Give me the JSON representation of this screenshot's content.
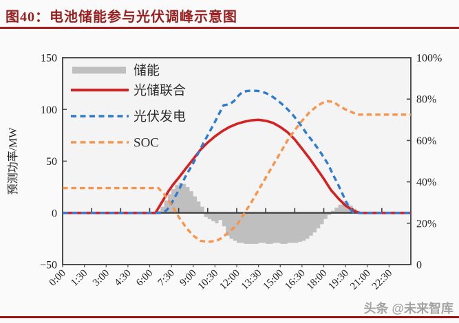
{
  "header": {
    "title": "图40：电池储能参与光伏调峰示意图"
  },
  "watermark": {
    "text": "头条 @未来智库"
  },
  "theme": {
    "title_color": "#9a2020",
    "rule_color": "#aa1b1b",
    "axis_color": "#4d4d4d",
    "background": "#fafafa",
    "plot_background": "#f4f4f5"
  },
  "chart_data": {
    "type": "line",
    "title": "",
    "x_axis": {
      "unit": "time-of-day",
      "range_hours": [
        0,
        24
      ],
      "ticklabels": [
        "0:00",
        "1:30",
        "3:00",
        "4:30",
        "6:00",
        "7:30",
        "9:00",
        "10:30",
        "12:00",
        "13:30",
        "15:00",
        "16:30",
        "18:00",
        "19:30",
        "21:00",
        "22:30"
      ],
      "tick_hours": [
        0,
        1.5,
        3,
        4.5,
        6,
        7.5,
        9,
        10.5,
        12,
        13.5,
        15,
        16.5,
        18,
        19.5,
        21,
        22.5
      ],
      "zero_axis_tick_hours": [
        2,
        4,
        6,
        8,
        10,
        12,
        14,
        16,
        18,
        20,
        22
      ]
    },
    "y_left": {
      "label": "预测功率/MW",
      "range": [
        -50,
        150
      ],
      "tick_values": [
        150,
        100,
        50,
        0,
        -50
      ],
      "tick_labels": [
        "150",
        "100",
        "50",
        "0",
        "−50"
      ]
    },
    "y_right": {
      "label": "",
      "range": [
        0,
        100
      ],
      "tick_values": [
        100,
        80,
        60,
        40,
        20,
        0
      ],
      "tick_labels": [
        "100%",
        "80%",
        "60%",
        "40%",
        "20%",
        "0"
      ]
    },
    "legend": {
      "position": "top-left-inside",
      "items": [
        {
          "label": "储能",
          "swatch": "bar"
        },
        {
          "label": "光储联合",
          "swatch": "line-solid"
        },
        {
          "label": "光伏发电",
          "swatch": "line-dashed"
        },
        {
          "label": "SOC",
          "swatch": "line-dashed"
        }
      ]
    },
    "series": [
      {
        "name": "储能",
        "type": "step-area",
        "axis": "left",
        "color": "#bfbfbf",
        "points": [
          [
            6.5,
            2
          ],
          [
            6.75,
            6
          ],
          [
            7,
            12
          ],
          [
            7.25,
            18
          ],
          [
            7.5,
            23
          ],
          [
            7.75,
            27
          ],
          [
            8,
            29
          ],
          [
            8.25,
            28
          ],
          [
            8.5,
            25
          ],
          [
            8.75,
            21
          ],
          [
            9,
            16
          ],
          [
            9.25,
            11
          ],
          [
            9.5,
            6
          ],
          [
            9.75,
            -4
          ],
          [
            10,
            -6
          ],
          [
            10.25,
            -8
          ],
          [
            10.5,
            -10
          ],
          [
            10.75,
            -7
          ],
          [
            11,
            -13
          ],
          [
            11.25,
            -22
          ],
          [
            11.5,
            -25
          ],
          [
            11.75,
            -27
          ],
          [
            12,
            -29
          ],
          [
            12.5,
            -30
          ],
          [
            13,
            -30
          ],
          [
            13.5,
            -29
          ],
          [
            14,
            -30
          ],
          [
            14.5,
            -29
          ],
          [
            15,
            -30
          ],
          [
            15.5,
            -29
          ],
          [
            16,
            -29
          ],
          [
            16.25,
            -28
          ],
          [
            16.5,
            -27
          ],
          [
            16.75,
            -25
          ],
          [
            17,
            -22
          ],
          [
            17.25,
            -19
          ],
          [
            17.5,
            -15
          ],
          [
            17.75,
            -11
          ],
          [
            18,
            -6
          ],
          [
            18.25,
            -2
          ],
          [
            18.5,
            2
          ],
          [
            18.75,
            5
          ],
          [
            19,
            8
          ],
          [
            19.25,
            11
          ],
          [
            19.5,
            10
          ],
          [
            19.75,
            7
          ],
          [
            20,
            4
          ],
          [
            20.25,
            2
          ],
          [
            20.5,
            0
          ]
        ]
      },
      {
        "name": "光储联合",
        "type": "line",
        "style": "solid",
        "axis": "left",
        "color": "#d42222",
        "points": [
          [
            0,
            0
          ],
          [
            6.4,
            0
          ],
          [
            6.7,
            7
          ],
          [
            7,
            14
          ],
          [
            7.3,
            21
          ],
          [
            7.6,
            27
          ],
          [
            8,
            34
          ],
          [
            8.5,
            43
          ],
          [
            9,
            52
          ],
          [
            9.5,
            61
          ],
          [
            10,
            68
          ],
          [
            10.5,
            74
          ],
          [
            11,
            79
          ],
          [
            11.5,
            83
          ],
          [
            12,
            86
          ],
          [
            12.5,
            88
          ],
          [
            13,
            89.5
          ],
          [
            13.5,
            90
          ],
          [
            14,
            89
          ],
          [
            14.5,
            87
          ],
          [
            15,
            83
          ],
          [
            15.5,
            78
          ],
          [
            16,
            71
          ],
          [
            16.5,
            62
          ],
          [
            17,
            53
          ],
          [
            17.5,
            43
          ],
          [
            18,
            33
          ],
          [
            18.5,
            22
          ],
          [
            19,
            14
          ],
          [
            19.5,
            7
          ],
          [
            20,
            2.5
          ],
          [
            20.45,
            0
          ],
          [
            24,
            0
          ]
        ]
      },
      {
        "name": "光伏发电",
        "type": "line",
        "style": "dashed",
        "axis": "left",
        "color": "#2e7bd2",
        "points": [
          [
            0,
            0
          ],
          [
            6.9,
            0
          ],
          [
            7.2,
            3
          ],
          [
            7.5,
            9
          ],
          [
            8,
            22
          ],
          [
            8.5,
            36
          ],
          [
            9,
            48
          ],
          [
            9.5,
            62
          ],
          [
            10,
            75
          ],
          [
            10.5,
            88
          ],
          [
            10.9,
            99
          ],
          [
            11.1,
            104
          ],
          [
            11.5,
            105
          ],
          [
            11.8,
            108
          ],
          [
            12.1,
            113
          ],
          [
            12.4,
            117
          ],
          [
            12.8,
            118
          ],
          [
            13.4,
            118
          ],
          [
            13.8,
            117
          ],
          [
            14.3,
            114
          ],
          [
            14.8,
            109
          ],
          [
            15.3,
            103
          ],
          [
            15.8,
            96
          ],
          [
            16.3,
            87
          ],
          [
            16.8,
            77
          ],
          [
            17.3,
            68
          ],
          [
            17.8,
            58
          ],
          [
            18.3,
            47
          ],
          [
            18.6,
            38
          ],
          [
            19,
            27
          ],
          [
            19.4,
            15
          ],
          [
            19.7,
            6
          ],
          [
            20,
            0.5
          ],
          [
            20.1,
            0
          ],
          [
            24,
            0
          ]
        ]
      },
      {
        "name": "SOC",
        "type": "line",
        "style": "dashed",
        "axis": "right",
        "color": "#f6954b",
        "points": [
          [
            0,
            37
          ],
          [
            6.6,
            37
          ],
          [
            7,
            34
          ],
          [
            7.5,
            29
          ],
          [
            8,
            23
          ],
          [
            8.5,
            18
          ],
          [
            9,
            14
          ],
          [
            9.5,
            11.5
          ],
          [
            10,
            11
          ],
          [
            10.6,
            11.5
          ],
          [
            11,
            13
          ],
          [
            11.5,
            16
          ],
          [
            12,
            19
          ],
          [
            12.5,
            24.5
          ],
          [
            13,
            30
          ],
          [
            13.5,
            36
          ],
          [
            14,
            42
          ],
          [
            14.5,
            48
          ],
          [
            15,
            54
          ],
          [
            15.5,
            60
          ],
          [
            16,
            65
          ],
          [
            16.5,
            69.5
          ],
          [
            17,
            73.5
          ],
          [
            17.5,
            76.5
          ],
          [
            18,
            78.5
          ],
          [
            18.3,
            79
          ],
          [
            18.7,
            78.5
          ],
          [
            19,
            77
          ],
          [
            19.5,
            75
          ],
          [
            20,
            73.5
          ],
          [
            20.3,
            72.5
          ],
          [
            24,
            72.5
          ]
        ]
      }
    ]
  }
}
